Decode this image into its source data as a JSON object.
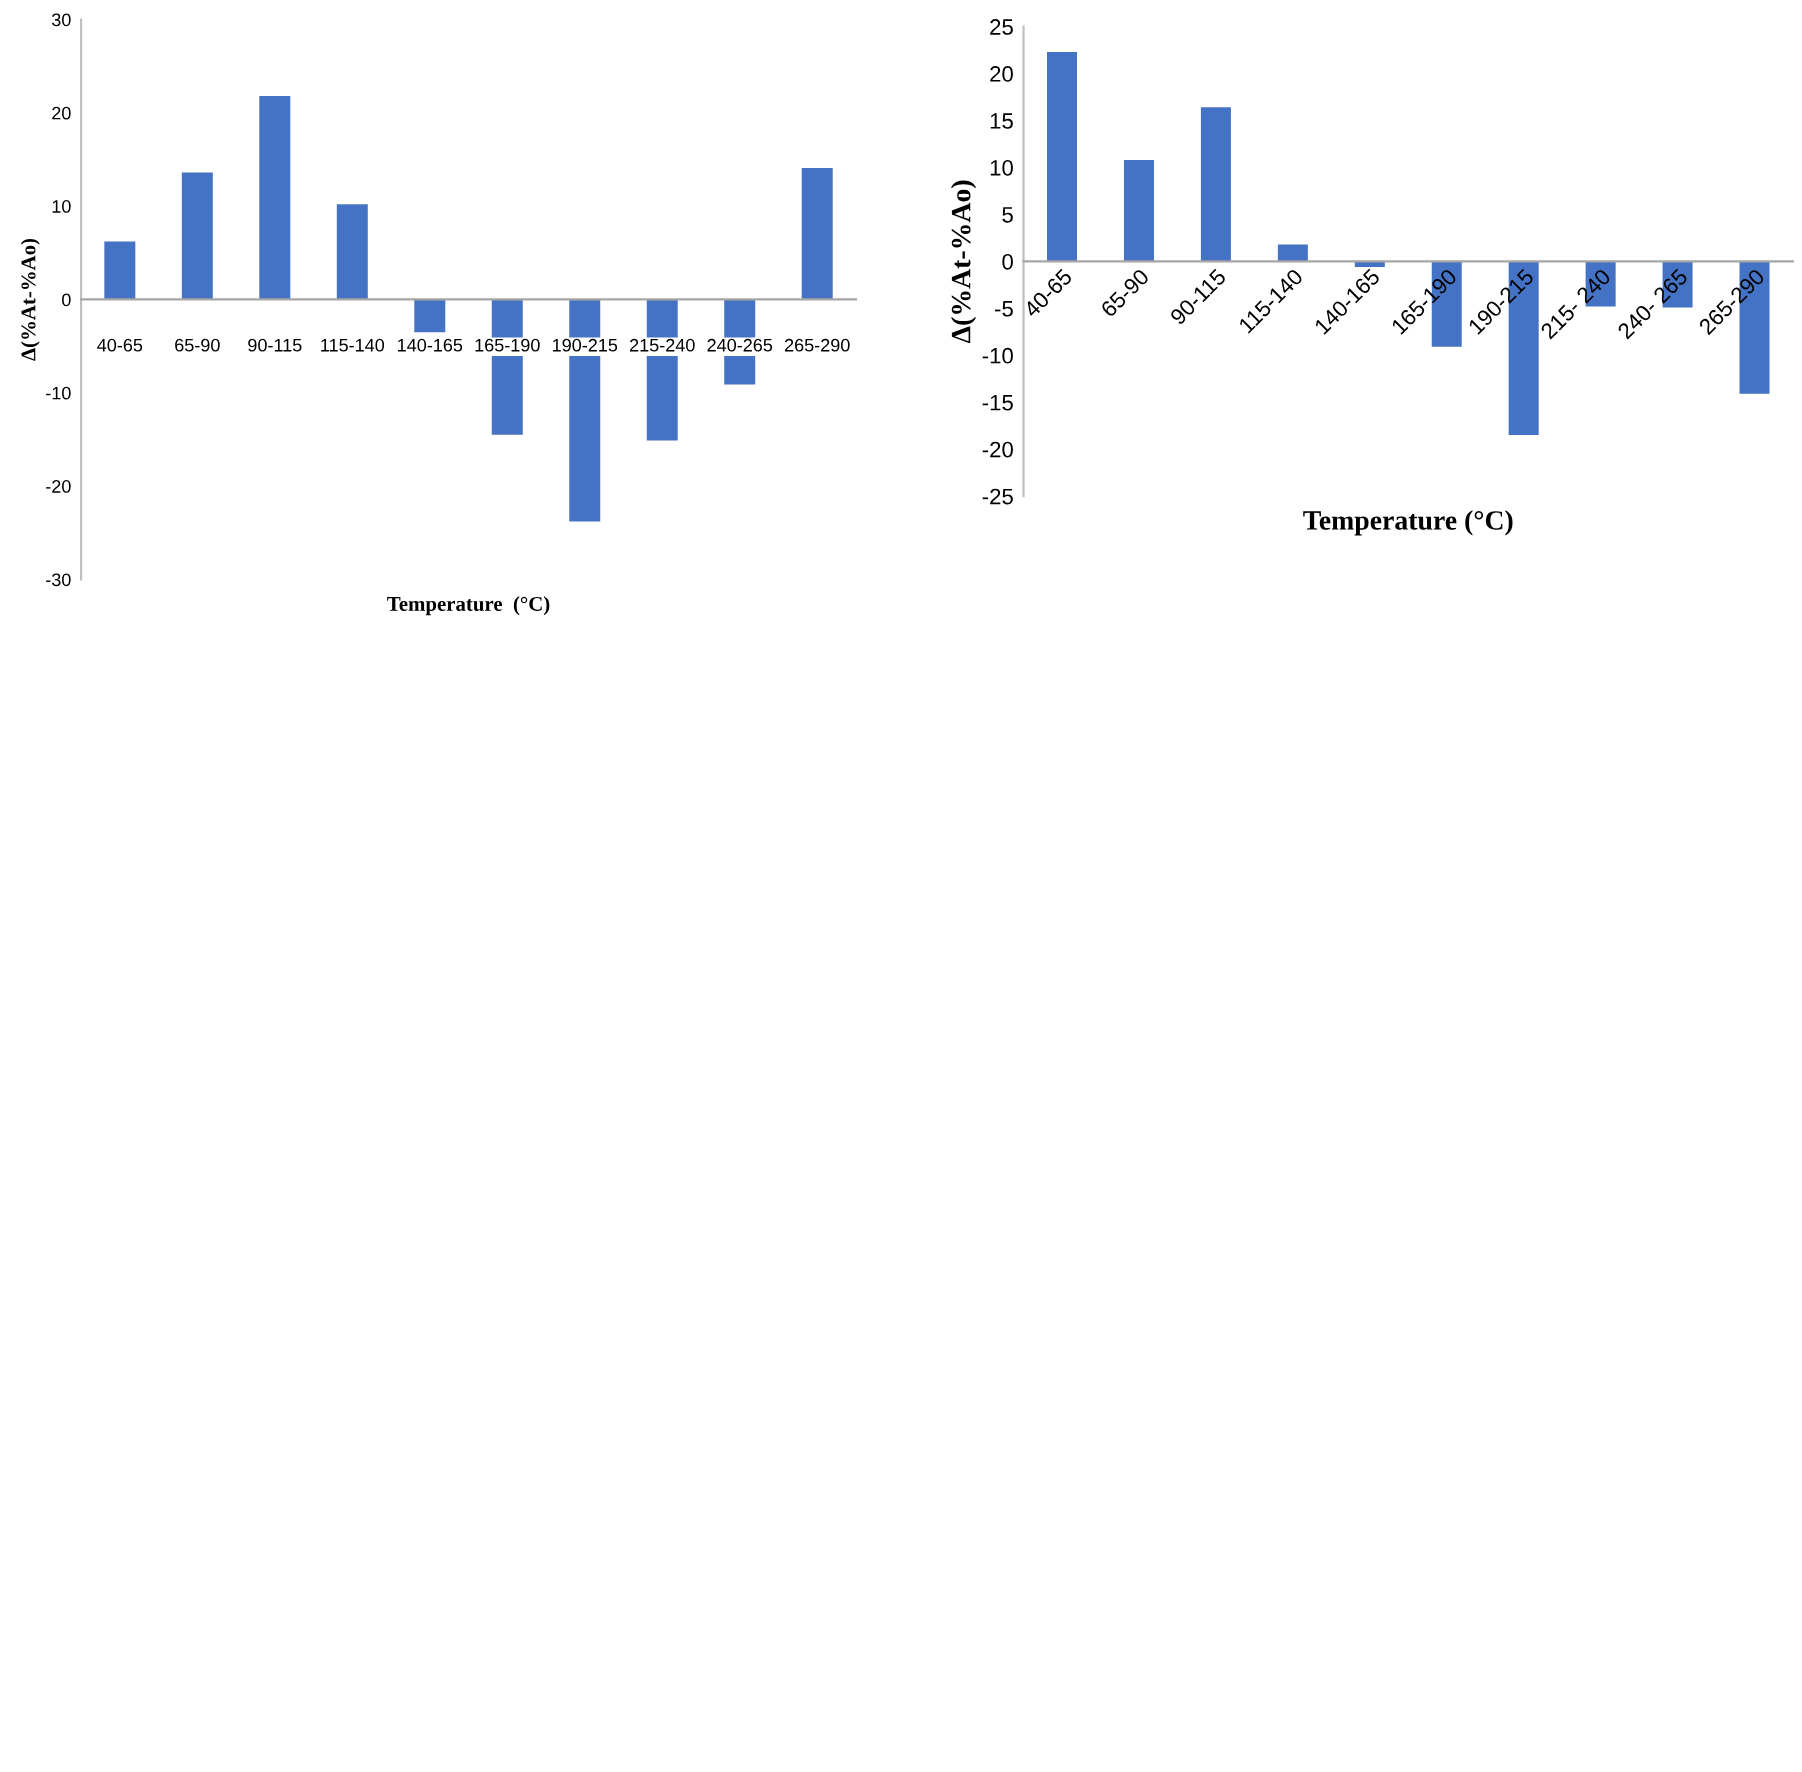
{
  "chart_data": [
    {
      "type": "bar",
      "xlabel": "Temperature  (°C)",
      "ylabel": "Δ(%At-%Ao)",
      "color": "#4472c4",
      "categories": [
        "40-65",
        "65-90",
        "90-115",
        "115-140",
        "140-165",
        "165-190",
        "190-215",
        "215-240",
        "240-265",
        "265-290"
      ],
      "values": [
        6.2,
        13.6,
        21.8,
        10.2,
        -3.5,
        -14.5,
        -23.8,
        -15.1,
        -9.1,
        14.1
      ],
      "ylim": [
        -30,
        30
      ],
      "yticks": [
        -30,
        -20,
        -10,
        0,
        10,
        20,
        30
      ]
    },
    {
      "type": "bar",
      "xlabel": "Temperature (°C)",
      "ylabel": "Δ(%At-%Ao)",
      "color": "#4472c4",
      "categories": [
        "40-65",
        "65-90",
        "90-115",
        "115-140",
        "140-165",
        "165-190",
        "190-215",
        "215- 240",
        "240- 265",
        "265-290"
      ],
      "values": [
        22.3,
        10.8,
        16.4,
        1.8,
        -0.6,
        -9.1,
        -18.5,
        -4.8,
        -4.9,
        -14.1
      ],
      "ylim": [
        -25,
        25
      ],
      "yticks": [
        -25,
        -20,
        -15,
        -10,
        -5,
        0,
        5,
        10,
        15,
        20,
        25
      ]
    }
  ]
}
